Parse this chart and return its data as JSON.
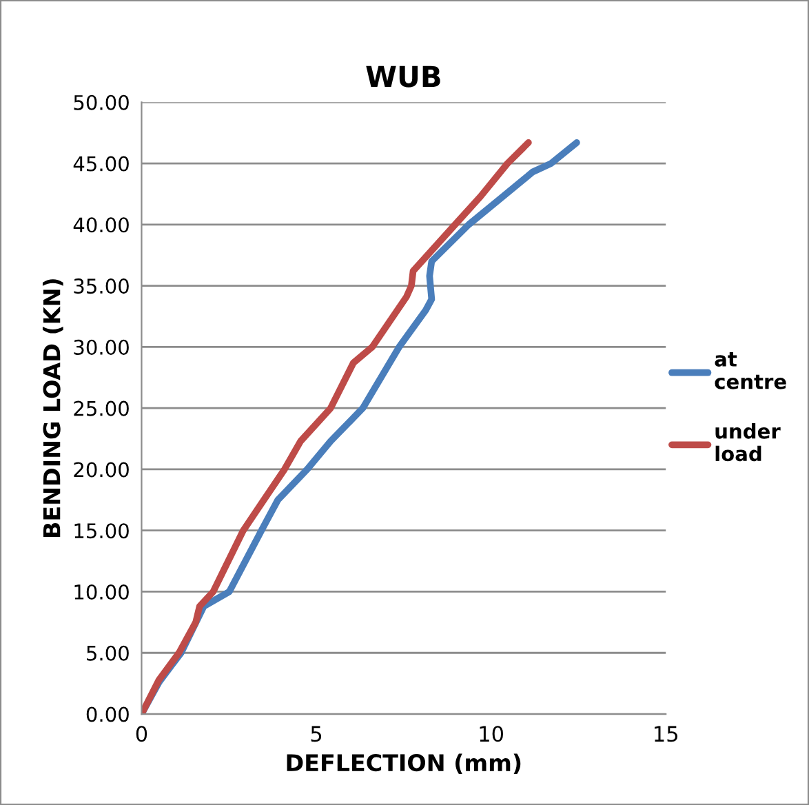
{
  "chart_data": {
    "type": "line",
    "title": "WUB",
    "xlabel": "DEFLECTION (mm)",
    "ylabel": "BENDING LOAD (KN)",
    "xlim": [
      0,
      15
    ],
    "xticks": [
      0,
      5,
      10,
      15
    ],
    "ylim": [
      0,
      50
    ],
    "yticks": [
      {
        "value": 0,
        "label": "0.00"
      },
      {
        "value": 5,
        "label": "5.00"
      },
      {
        "value": 10,
        "label": "10.00"
      },
      {
        "value": 15,
        "label": "15.00"
      },
      {
        "value": 20,
        "label": "20.00"
      },
      {
        "value": 25,
        "label": "25.00"
      },
      {
        "value": 30,
        "label": "30.00"
      },
      {
        "value": 35,
        "label": "35.00"
      },
      {
        "value": 40,
        "label": "40.00"
      },
      {
        "value": 45,
        "label": "45.00"
      },
      {
        "value": 50,
        "label": "50.00"
      }
    ],
    "grid": "y",
    "legend": "right",
    "marker": "none",
    "line_style": "solid",
    "series": [
      {
        "name": "at centre",
        "color": "#4a7ebb",
        "x": [
          0,
          0.5,
          1.13,
          1.78,
          2.51,
          3.43,
          3.9,
          4.74,
          5.41,
          6.33,
          7.37,
          8.13,
          8.3,
          8.24,
          8.3,
          9.36,
          10.3,
          11.19,
          11.72,
          12.45
        ],
        "values": [
          0,
          2.6,
          5,
          8.8,
          10,
          15,
          17.5,
          20,
          22.3,
          25,
          30,
          33,
          33.9,
          35.8,
          37,
          40,
          42.2,
          44.3,
          45,
          46.7
        ]
      },
      {
        "name": "under load",
        "color": "#be4b48",
        "x": [
          0,
          0.5,
          1.07,
          1.55,
          1.66,
          2.05,
          2.91,
          3.5,
          4.09,
          4.55,
          5.41,
          6.06,
          6.6,
          7.58,
          7.72,
          7.77,
          8.97,
          9.7,
          10.47,
          11.07
        ],
        "values": [
          0,
          2.8,
          5,
          7.5,
          8.8,
          10,
          15,
          17.5,
          20,
          22.3,
          25,
          28.7,
          30,
          34.1,
          35,
          36.2,
          40,
          42.3,
          45,
          46.7
        ]
      }
    ]
  }
}
